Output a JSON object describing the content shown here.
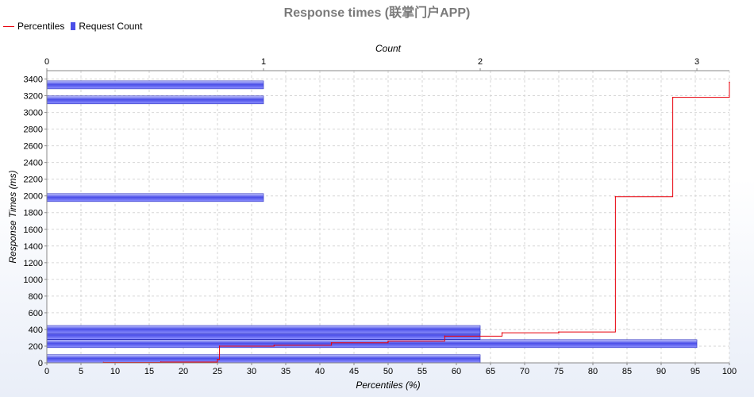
{
  "chart_data": {
    "type": "bar+line",
    "title": "Response times (联掌门户APP)",
    "legend": {
      "placement": "top-left",
      "entries": [
        "Percentiles",
        "Request Count"
      ]
    },
    "x_bottom": {
      "label": "Percentiles (%)",
      "range": [
        0,
        100
      ],
      "ticks": [
        "0",
        "5",
        "10",
        "15",
        "20",
        "25",
        "30",
        "35",
        "40",
        "45",
        "50",
        "55",
        "60",
        "65",
        "70",
        "75",
        "80",
        "85",
        "90",
        "95",
        "100"
      ]
    },
    "x_top": {
      "label": "Count",
      "range": [
        0,
        3.15
      ],
      "ticks": [
        "0",
        "1",
        "2",
        "3"
      ]
    },
    "y": {
      "label": "Response Times (ms)",
      "range": [
        0,
        3500
      ],
      "ticks": [
        "0",
        "200",
        "400",
        "600",
        "800",
        "1000",
        "1200",
        "1400",
        "1600",
        "1800",
        "2000",
        "2200",
        "2400",
        "2600",
        "2800",
        "3000",
        "3200",
        "3400"
      ]
    },
    "grid": true,
    "series": [
      {
        "name": "Request Count",
        "kind": "horizontal-bar",
        "color": "#4a4ee8",
        "bars": [
          {
            "response_time_ms": 50,
            "count": 2
          },
          {
            "response_time_ms": 230,
            "count": 3
          },
          {
            "response_time_ms": 330,
            "count": 2
          },
          {
            "response_time_ms": 400,
            "count": 2
          },
          {
            "response_time_ms": 1980,
            "count": 1
          },
          {
            "response_time_ms": 3150,
            "count": 1
          },
          {
            "response_time_ms": 3330,
            "count": 1
          }
        ]
      },
      {
        "name": "Percentiles",
        "kind": "step-line",
        "color": "#e8000b",
        "points": [
          [
            8.3,
            5
          ],
          [
            16.7,
            10
          ],
          [
            25,
            40
          ],
          [
            25.3,
            200
          ],
          [
            33.3,
            210
          ],
          [
            41.7,
            240
          ],
          [
            50,
            260
          ],
          [
            58.3,
            320
          ],
          [
            66.7,
            360
          ],
          [
            75,
            370
          ],
          [
            83.3,
            1990
          ],
          [
            91.7,
            3180
          ],
          [
            100,
            3360
          ]
        ]
      }
    ]
  }
}
